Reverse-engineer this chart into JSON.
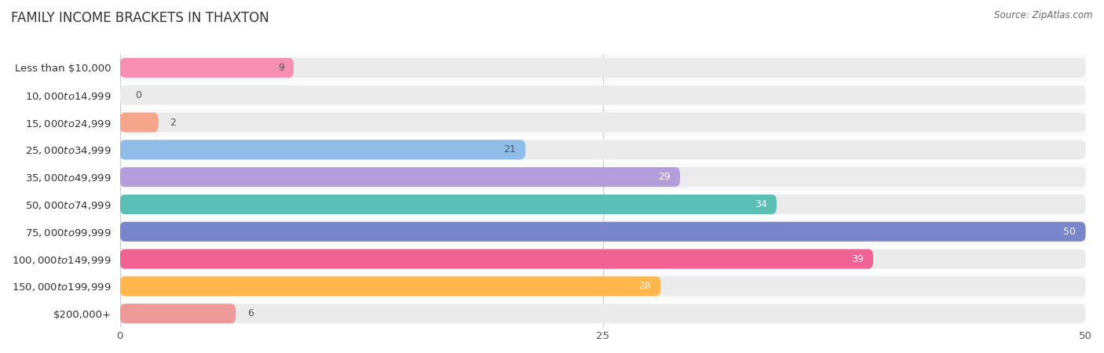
{
  "title": "FAMILY INCOME BRACKETS IN THAXTON",
  "source": "Source: ZipAtlas.com",
  "categories": [
    "Less than $10,000",
    "$10,000 to $14,999",
    "$15,000 to $24,999",
    "$25,000 to $34,999",
    "$35,000 to $49,999",
    "$50,000 to $74,999",
    "$75,000 to $99,999",
    "$100,000 to $149,999",
    "$150,000 to $199,999",
    "$200,000+"
  ],
  "values": [
    9,
    0,
    2,
    21,
    29,
    34,
    50,
    39,
    28,
    6
  ],
  "bar_colors": [
    "#f78fb3",
    "#ffc89a",
    "#f4a58a",
    "#90bce8",
    "#b39ddb",
    "#5bbfb5",
    "#7986cb",
    "#f06292",
    "#ffb74d",
    "#ef9a9a"
  ],
  "xlim": [
    0,
    50
  ],
  "xticks": [
    0,
    25,
    50
  ],
  "background_color": "#ffffff",
  "bar_bg_color": "#ebebeb",
  "row_bg_colors": [
    "#f9f9f9",
    "#ffffff"
  ],
  "title_fontsize": 12,
  "label_fontsize": 9.5,
  "value_fontsize": 9
}
